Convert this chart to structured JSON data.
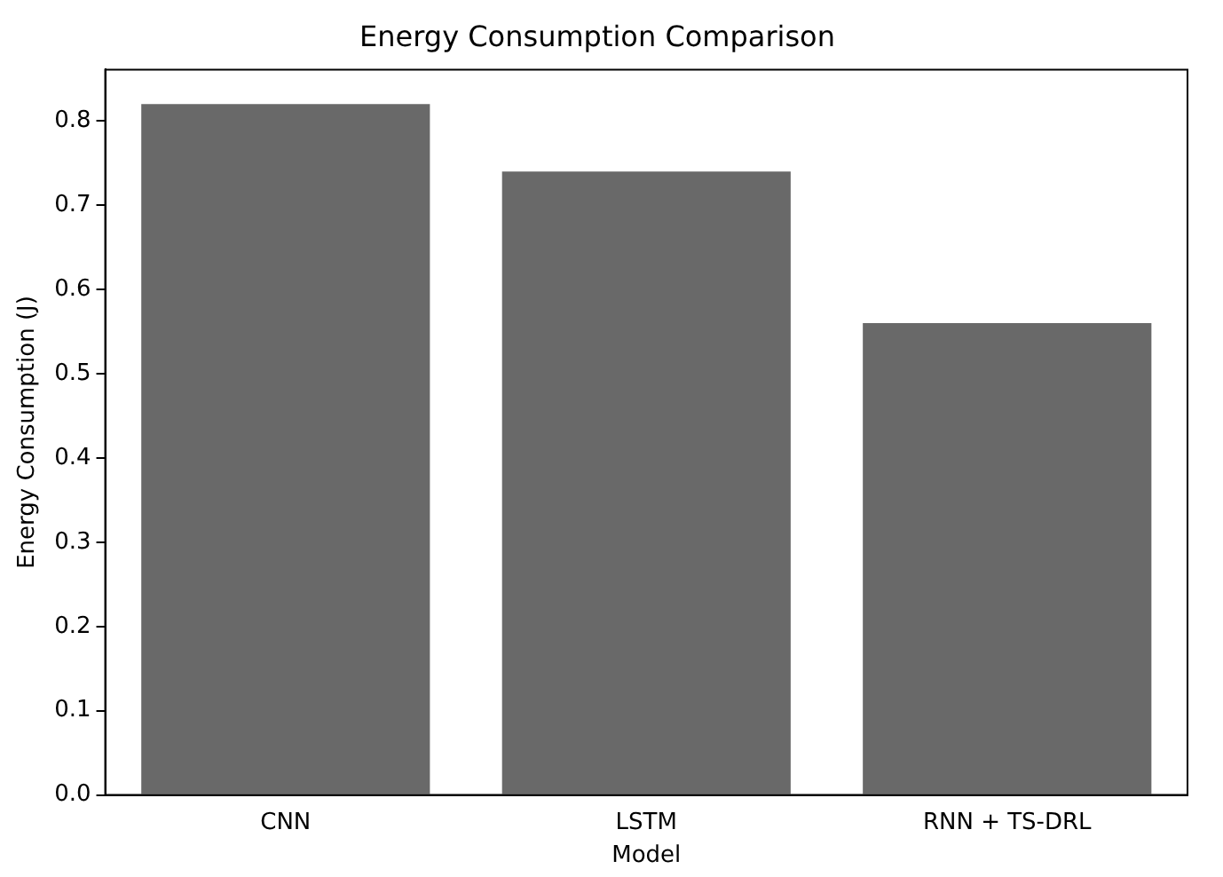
{
  "chart_data": {
    "type": "bar",
    "title": "Energy Consumption Comparison",
    "xlabel": "Model",
    "ylabel": "Energy Consumption (J)",
    "categories": [
      "CNN",
      "LSTM",
      "RNN + TS-DRL"
    ],
    "values": [
      0.82,
      0.74,
      0.56
    ],
    "color": "#696969",
    "ylim": [
      0,
      0.861
    ],
    "yticks": [
      {
        "value": 0,
        "label": "0.0"
      },
      {
        "value": 0.1,
        "label": "0.1"
      },
      {
        "value": 0.2,
        "label": "0.2"
      },
      {
        "value": 0.3,
        "label": "0.3"
      },
      {
        "value": 0.4,
        "label": "0.4"
      },
      {
        "value": 0.5,
        "label": "0.5"
      },
      {
        "value": 0.6,
        "label": "0.6"
      },
      {
        "value": 0.7,
        "label": "0.7"
      },
      {
        "value": 0.8,
        "label": "0.8"
      }
    ],
    "grid": false,
    "legend": false
  }
}
